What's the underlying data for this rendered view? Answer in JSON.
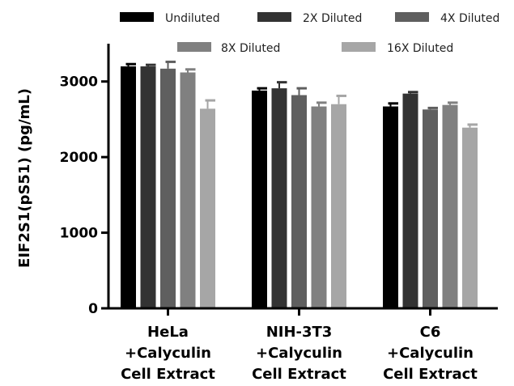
{
  "chart_data": {
    "type": "bar",
    "ylabel": "EIF2S1(pS51) (pg/mL)",
    "ylim": [
      0,
      3500
    ],
    "yticks": [
      0,
      1000,
      2000,
      3000
    ],
    "categories": [
      [
        "HeLa",
        "+Calyculin",
        "Cell Extract"
      ],
      [
        "NIH-3T3",
        "+Calyculin",
        "Cell Extract"
      ],
      [
        "C6",
        "+Calyculin",
        "Cell Extract"
      ]
    ],
    "series": [
      {
        "name": "Undiluted",
        "color": "#000000",
        "values": [
          3200,
          2880,
          2670
        ],
        "errors": [
          30,
          30,
          40
        ]
      },
      {
        "name": "2X Diluted",
        "color": "#333333",
        "values": [
          3200,
          2910,
          2840
        ],
        "errors": [
          20,
          80,
          20
        ]
      },
      {
        "name": "4X Diluted",
        "color": "#5f5f5f",
        "values": [
          3170,
          2820,
          2630
        ],
        "errors": [
          90,
          90,
          20
        ]
      },
      {
        "name": "8X Diluted",
        "color": "#808080",
        "values": [
          3120,
          2670,
          2690
        ],
        "errors": [
          40,
          50,
          30
        ]
      },
      {
        "name": "16X Diluted",
        "color": "#a6a6a6",
        "values": [
          2640,
          2700,
          2390
        ],
        "errors": [
          110,
          110,
          40
        ]
      }
    ],
    "grid": false,
    "legend_position": "top"
  }
}
